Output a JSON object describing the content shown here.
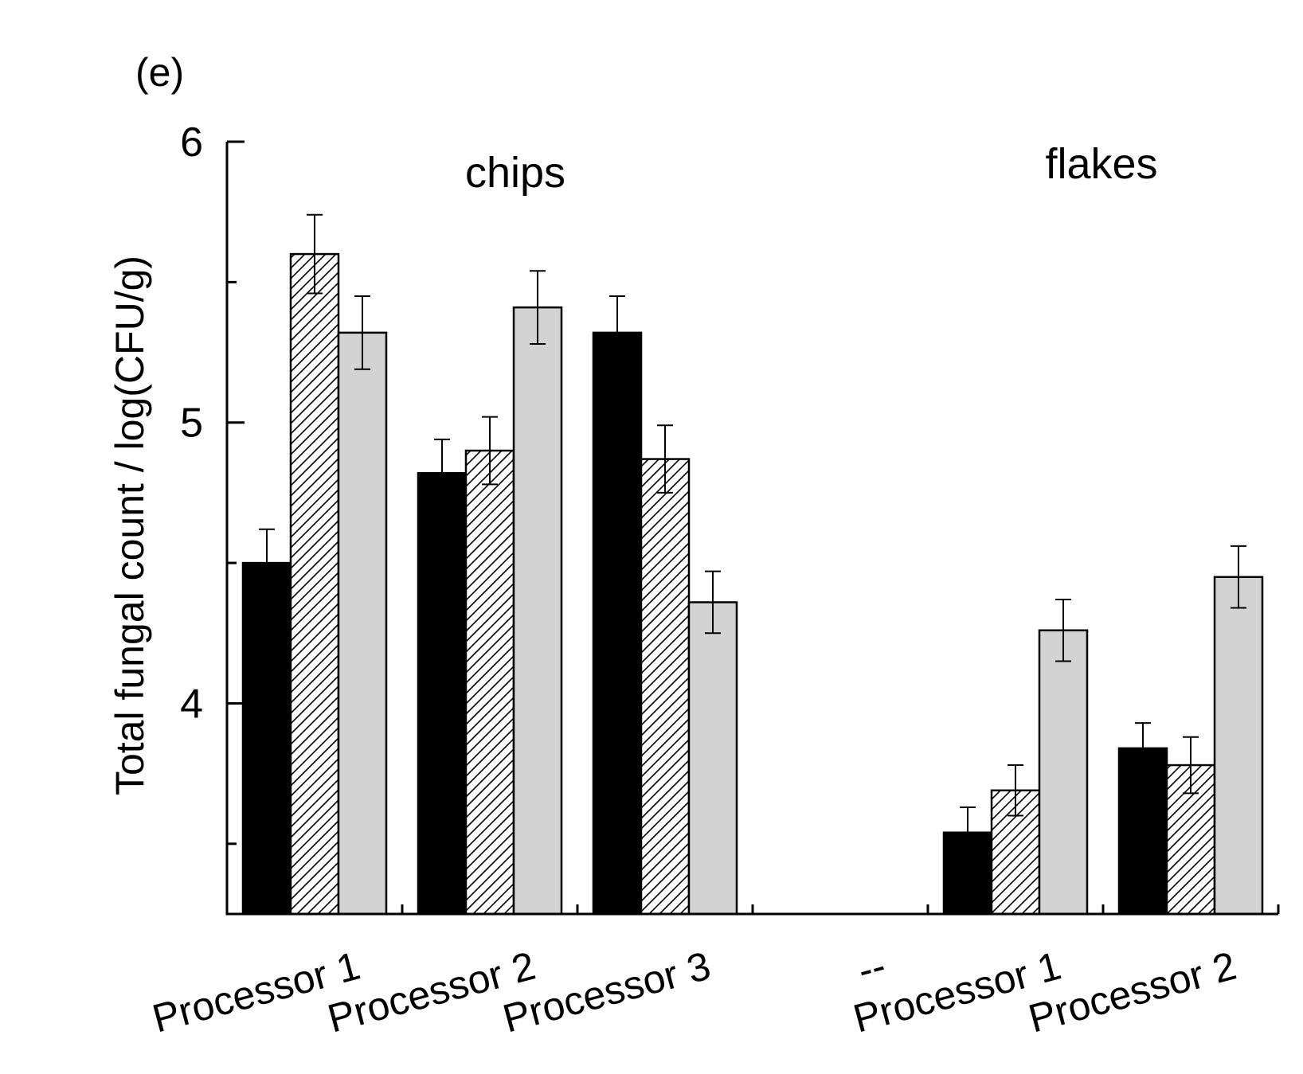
{
  "chart_data": {
    "type": "bar",
    "panel_label": "(e)",
    "title": "",
    "xlabel": "",
    "ylabel": "Total fungal count / log(CFU/g)",
    "ylim": [
      3.25,
      6
    ],
    "yticks": [
      4,
      5,
      6
    ],
    "yticks_minor": [
      3.5,
      4.5,
      5.5
    ],
    "grid": false,
    "legend": "none",
    "groups": [
      {
        "label": "chips",
        "categories": [
          "Processor 1",
          "Processor 2",
          "Processor 3"
        ]
      },
      {
        "label": "flakes",
        "categories": [
          "--",
          "Processor 1",
          "Processor 2"
        ]
      }
    ],
    "categories": [
      "Processor 1",
      "Processor 2",
      "Processor 3",
      "--",
      "Processor 1",
      "Processor 2"
    ],
    "series": [
      {
        "fill": "#000000",
        "pattern": "solid",
        "values": [
          4.5,
          4.82,
          5.32,
          null,
          3.54,
          3.84
        ],
        "errors": [
          0.12,
          0.12,
          0.13,
          null,
          0.09,
          0.09
        ]
      },
      {
        "fill": "#ffffff",
        "pattern": "hatched",
        "values": [
          5.6,
          4.9,
          4.87,
          null,
          3.69,
          3.78
        ],
        "errors": [
          0.14,
          0.12,
          0.12,
          null,
          0.09,
          0.1
        ]
      },
      {
        "fill": "#d3d3d3",
        "pattern": "solid",
        "values": [
          5.32,
          5.41,
          4.36,
          null,
          4.26,
          4.45
        ],
        "errors": [
          0.13,
          0.13,
          0.11,
          null,
          0.11,
          0.11
        ]
      }
    ]
  }
}
